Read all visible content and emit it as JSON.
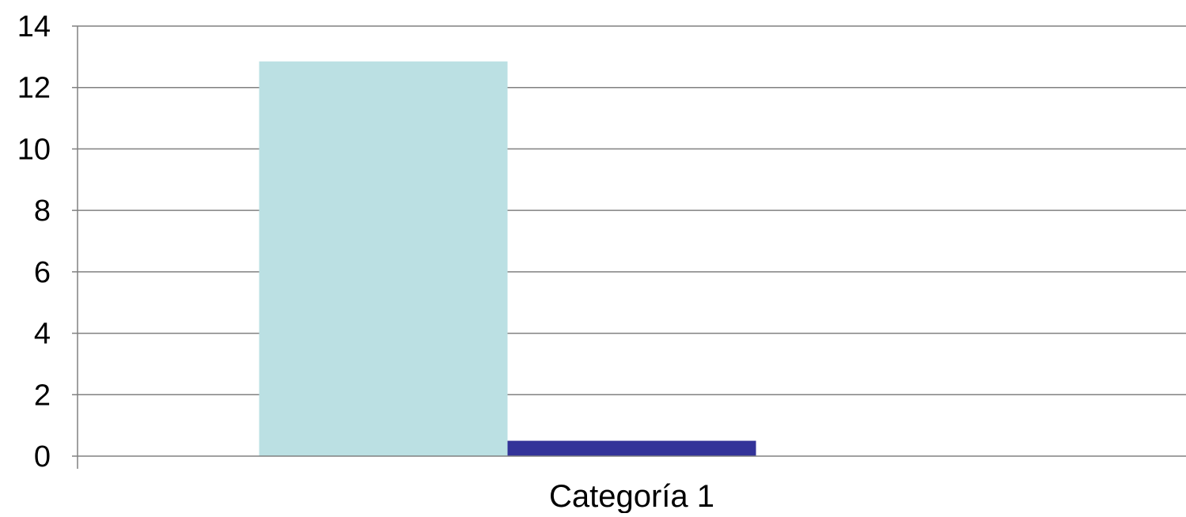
{
  "chart_data": {
    "type": "bar",
    "title": "",
    "xlabel": "",
    "ylabel": "",
    "categories": [
      "Categoría 1"
    ],
    "series": [
      {
        "values": [
          12.85
        ],
        "color": "#BBE0E3"
      },
      {
        "values": [
          0.5
        ],
        "color": "#333399"
      },
      {
        "values": [
          0
        ],
        "color": "#FFFFFF"
      }
    ],
    "ylim": [
      0,
      14
    ],
    "yticks": [
      "0",
      "2",
      "4",
      "6",
      "8",
      "10",
      "12",
      "14"
    ],
    "grid": true,
    "legend": "none"
  }
}
